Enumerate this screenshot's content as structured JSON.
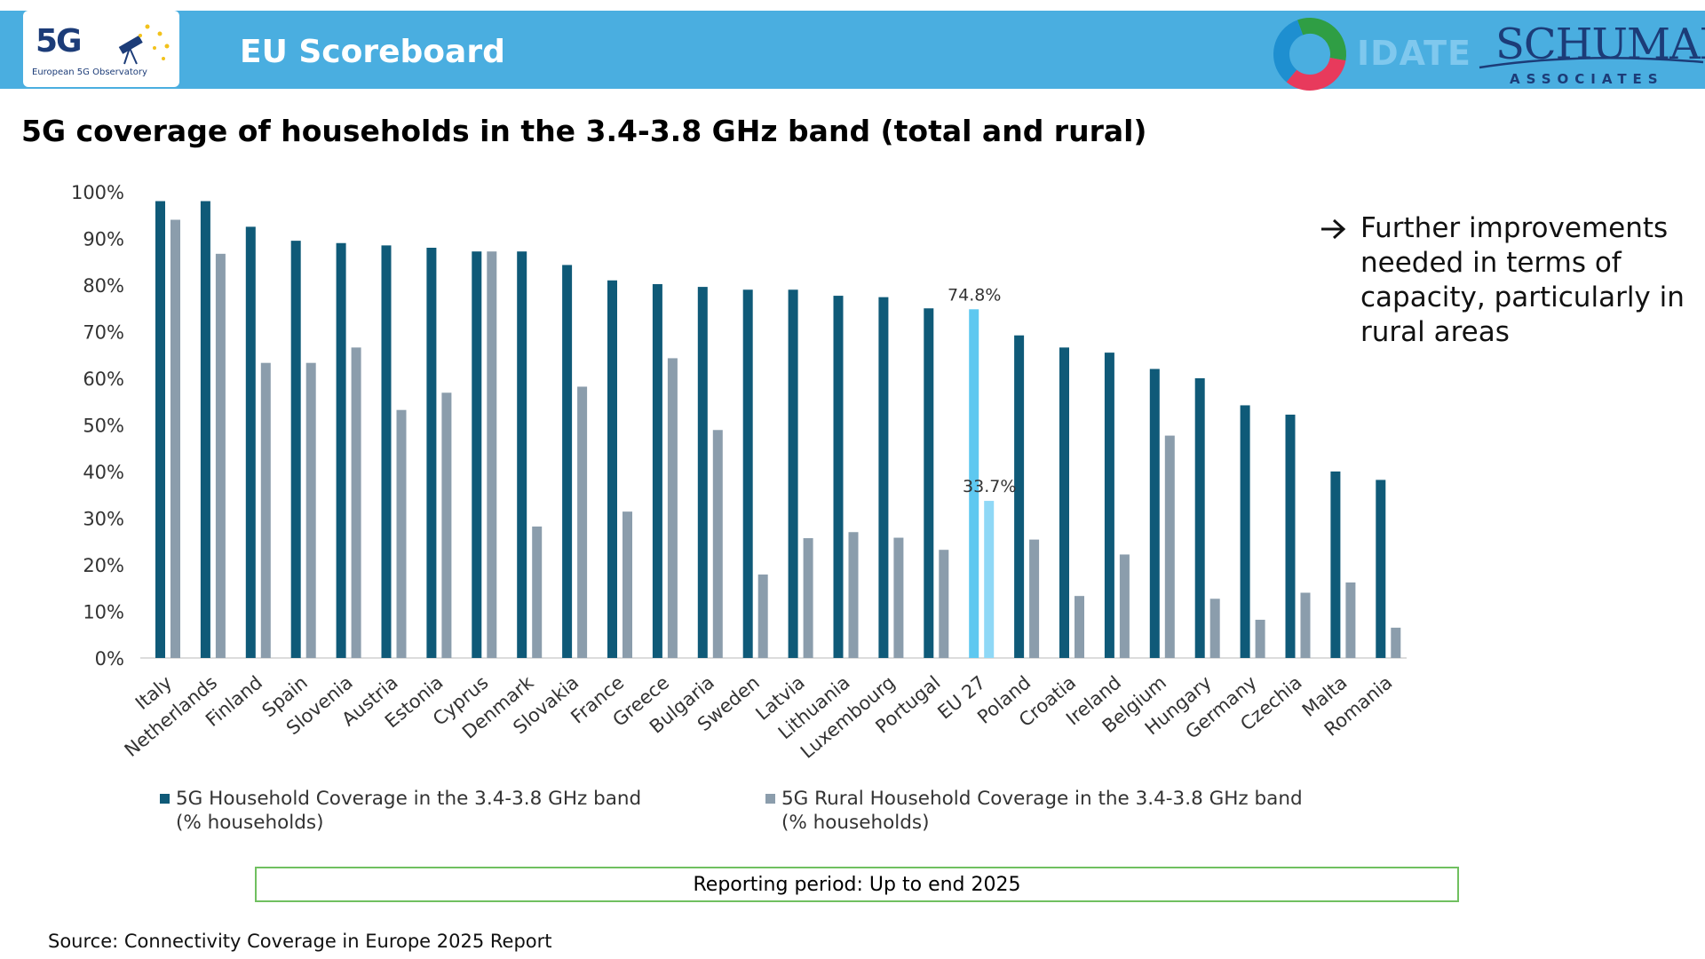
{
  "header": {
    "title": "EU Scoreboard",
    "logo_5g_text": "5G",
    "logo_5g_caption": "European 5G Observatory",
    "idate_text": "IDATE",
    "schuman_text": "SCHUMAN",
    "schuman_subtext": "ASSOCIATES",
    "colors": {
      "bar": "#4aaee0",
      "brand_navy": "#1c3c78"
    }
  },
  "page_title": "5G coverage of households in the 3.4-3.8 GHz band (total and rural)",
  "note": {
    "arrow_icon": "arrow-right-icon",
    "text": "Further improvements needed in terms of capacity, particularly in rural areas"
  },
  "legend": {
    "total": {
      "label": "5G Household Coverage in the 3.4-3.8 GHz band",
      "sub": "(% households)"
    },
    "rural": {
      "label": "5G Rural Household Coverage in the 3.4-3.8 GHz band",
      "sub": "(% households)"
    }
  },
  "reporting_period": "Reporting period: Up to end 2025",
  "source": "Source: Connectivity Coverage in Europe 2025 Report",
  "chart_data": {
    "type": "bar",
    "ylim": [
      0,
      100
    ],
    "y_ticks": [
      "0%",
      "10%",
      "20%",
      "30%",
      "40%",
      "50%",
      "60%",
      "70%",
      "80%",
      "90%",
      "100%"
    ],
    "grid": false,
    "legend_position": "bottom",
    "categories": [
      "Italy",
      "Netherlands",
      "Finland",
      "Spain",
      "Slovenia",
      "Austria",
      "Estonia",
      "Cyprus",
      "Denmark",
      "Slovakia",
      "France",
      "Greece",
      "Bulgaria",
      "Sweden",
      "Latvia",
      "Lithuania",
      "Luxembourg",
      "Portugal",
      "EU 27",
      "Poland",
      "Croatia",
      "Ireland",
      "Belgium",
      "Hungary",
      "Germany",
      "Czechia",
      "Malta",
      "Romania"
    ],
    "highlight_category": "EU 27",
    "series": [
      {
        "name": "5G Household Coverage in the 3.4-3.8 GHz band (% households)",
        "color": "#0f5a78",
        "highlight_color": "#5ec8f0",
        "values": [
          98.0,
          98.0,
          92.5,
          89.5,
          89.0,
          88.5,
          88.0,
          87.2,
          87.2,
          84.3,
          81.0,
          80.2,
          79.6,
          79.0,
          79.0,
          77.7,
          77.4,
          75.0,
          74.8,
          69.2,
          66.6,
          65.5,
          62.0,
          60.0,
          54.2,
          52.2,
          40.0,
          38.2
        ]
      },
      {
        "name": "5G Rural Household Coverage in the 3.4-3.8 GHz band (% households)",
        "color": "#8b9dac",
        "highlight_color": "#8fd8f6",
        "values": [
          94.0,
          86.7,
          63.3,
          63.3,
          66.6,
          53.2,
          56.9,
          87.2,
          28.2,
          58.2,
          31.4,
          64.3,
          48.9,
          17.9,
          25.7,
          27.0,
          25.8,
          23.2,
          33.7,
          25.4,
          13.3,
          22.2,
          47.7,
          12.7,
          8.2,
          14.0,
          16.2,
          6.5
        ]
      }
    ],
    "data_labels": [
      {
        "category": "EU 27",
        "series": 0,
        "text": "74.8%"
      },
      {
        "category": "EU 27",
        "series": 1,
        "text": "33.7%"
      }
    ]
  }
}
